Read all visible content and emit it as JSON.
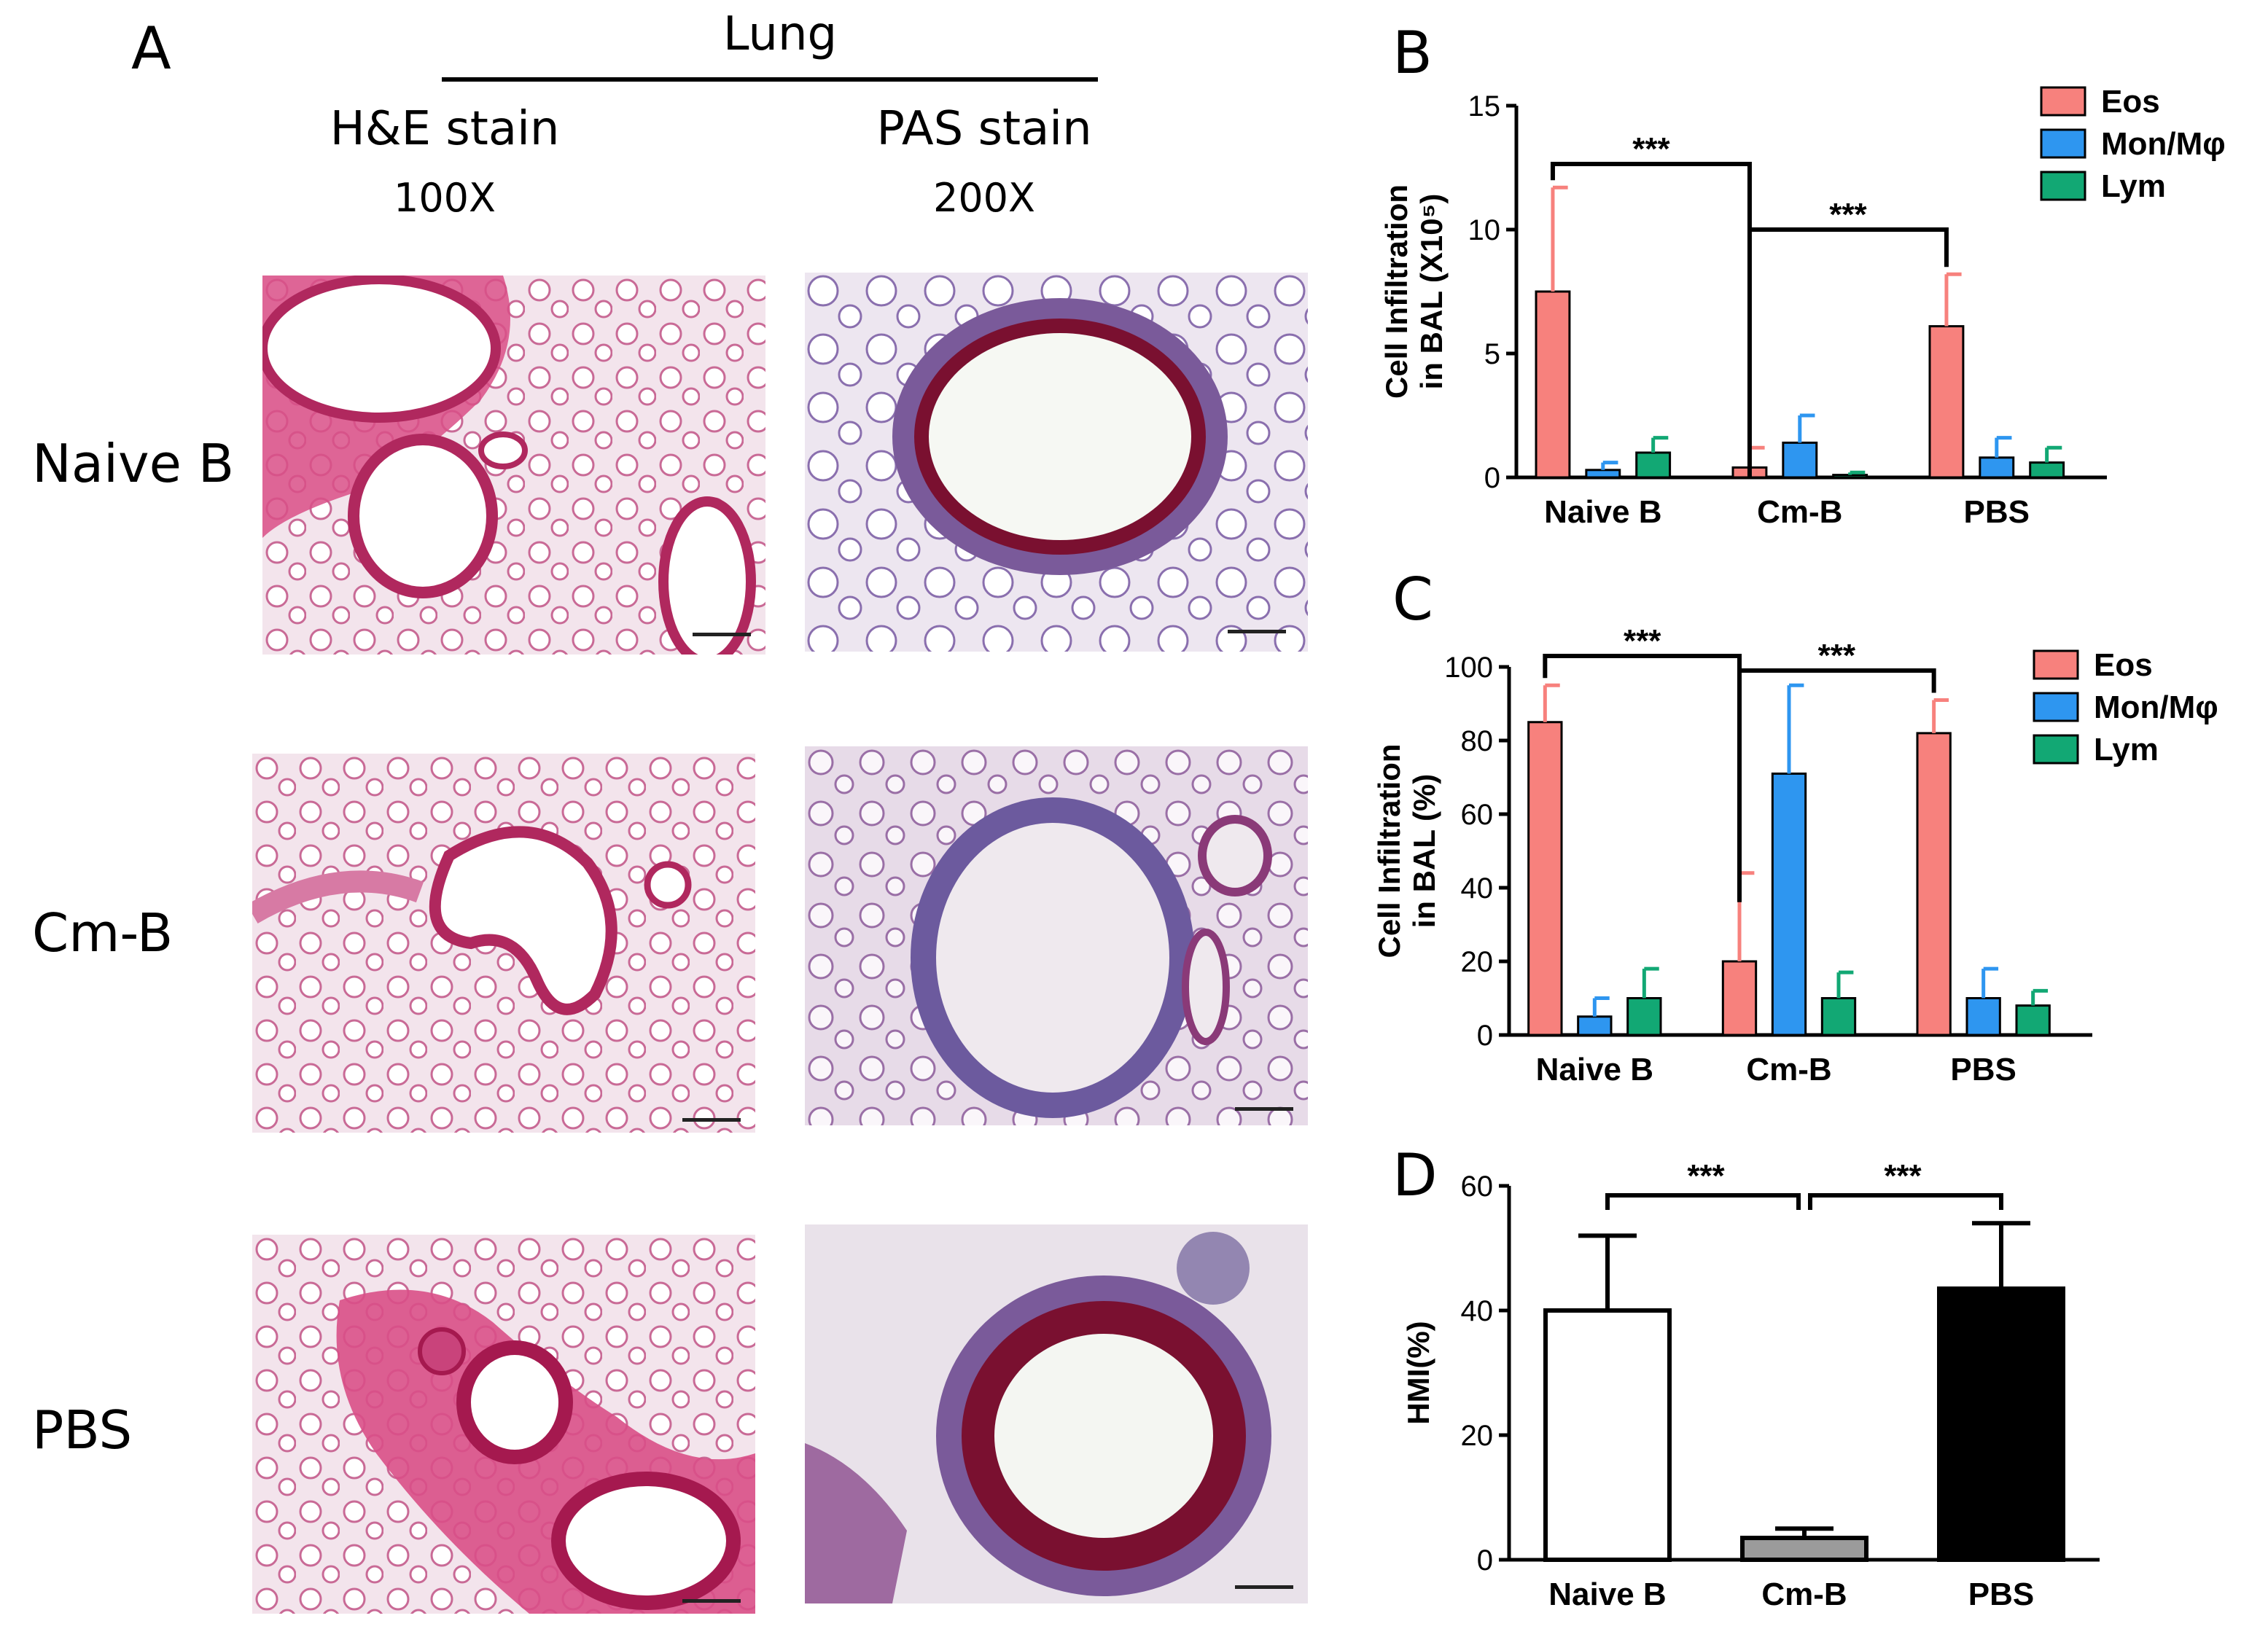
{
  "panel_a": {
    "letter": "A",
    "title": "Lung",
    "columns": [
      {
        "stain": "H&E stain",
        "magnification": "100X"
      },
      {
        "stain": "PAS stain",
        "magnification": "200X"
      }
    ],
    "rows": [
      "Naive B",
      "Cm-B",
      "PBS"
    ]
  },
  "colors": {
    "eos": "#f7817d",
    "mon": "#2e96f0",
    "lym": "#12a874",
    "hmi_naive": "#ffffff",
    "hmi_cmb": "#9b9b9b",
    "hmi_pbs": "#000000",
    "he_tissue": "#d94f87",
    "pas_tissue": "#7a5a9a",
    "pas_goblet": "#7a1030"
  },
  "chart_data": [
    {
      "panel": "B",
      "type": "bar",
      "ylabel": [
        "Cell Infiltration",
        "in BAL (X10⁵)"
      ],
      "ylim": [
        0,
        15
      ],
      "yticks": [
        0,
        5,
        10,
        15
      ],
      "categories": [
        "Naive B",
        "Cm-B",
        "PBS"
      ],
      "series": [
        {
          "name": "Eos",
          "values": [
            7.5,
            0.4,
            6.1
          ],
          "errors": [
            4.2,
            0.8,
            2.1
          ]
        },
        {
          "name": "Mon/Mφ",
          "values": [
            0.3,
            1.4,
            0.8
          ],
          "errors": [
            0.3,
            1.1,
            0.8
          ]
        },
        {
          "name": "Lym",
          "values": [
            1.0,
            0.1,
            0.6
          ],
          "errors": [
            0.6,
            0.1,
            0.6
          ]
        }
      ],
      "significance": [
        {
          "from": "Naive B",
          "to": "Cm-B",
          "label": "***"
        },
        {
          "from": "Cm-B",
          "to": "PBS",
          "label": "***"
        }
      ],
      "legend": "top-right"
    },
    {
      "panel": "C",
      "type": "bar",
      "ylabel": [
        "Cell Infiltration",
        "in BAL (%)"
      ],
      "ylim": [
        0,
        100
      ],
      "yticks": [
        0,
        20,
        40,
        60,
        80,
        100
      ],
      "categories": [
        "Naive B",
        "Cm-B",
        "PBS"
      ],
      "series": [
        {
          "name": "Eos",
          "values": [
            85,
            20,
            82
          ],
          "errors": [
            10,
            24,
            9
          ]
        },
        {
          "name": "Mon/Mφ",
          "values": [
            5,
            71,
            10
          ],
          "errors": [
            5,
            24,
            8
          ]
        },
        {
          "name": "Lym",
          "values": [
            10,
            10,
            8
          ],
          "errors": [
            8,
            7,
            4
          ]
        }
      ],
      "significance": [
        {
          "from": "Naive B",
          "to": "Cm-B",
          "label": "***"
        },
        {
          "from": "Cm-B",
          "to": "PBS",
          "label": "***"
        }
      ],
      "legend": "top-right"
    },
    {
      "panel": "D",
      "type": "bar",
      "ylabel": [
        "HMI(%)"
      ],
      "ylim": [
        0,
        60
      ],
      "yticks": [
        0,
        20,
        40,
        60
      ],
      "categories": [
        "Naive B",
        "Cm-B",
        "PBS"
      ],
      "values": [
        40,
        3.5,
        43.5
      ],
      "errors": [
        12,
        1.5,
        10.5
      ],
      "significance": [
        {
          "from": "Naive B",
          "to": "Cm-B",
          "label": "***"
        },
        {
          "from": "Cm-B",
          "to": "PBS",
          "label": "***"
        }
      ]
    }
  ]
}
